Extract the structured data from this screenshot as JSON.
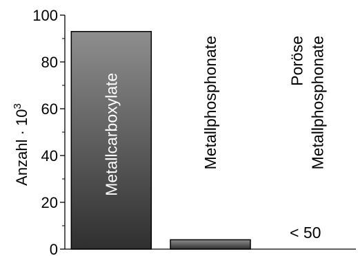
{
  "chart_data": {
    "type": "bar",
    "categories": [
      "Metallcarboxylate",
      "Metallphosphonate",
      "Poröse Metallphosphonate"
    ],
    "category_lines": [
      [
        "Metallcarboxylate"
      ],
      [
        "Metallphosphonate"
      ],
      [
        "Poröse",
        "Metallphosphonate"
      ]
    ],
    "values": [
      93,
      4,
      0
    ],
    "ylabel": "Anzahl · 10",
    "ylabel_superscript": "3",
    "ylim": [
      0,
      100
    ],
    "yticks": [
      0,
      20,
      40,
      60,
      80,
      100
    ],
    "annotation": "< 50",
    "grid": false,
    "legend": "none",
    "colors": {
      "bar_top": "#8e8e8e",
      "bar_bottom": "#2f2f2f",
      "bar_stroke": "#000000"
    }
  }
}
